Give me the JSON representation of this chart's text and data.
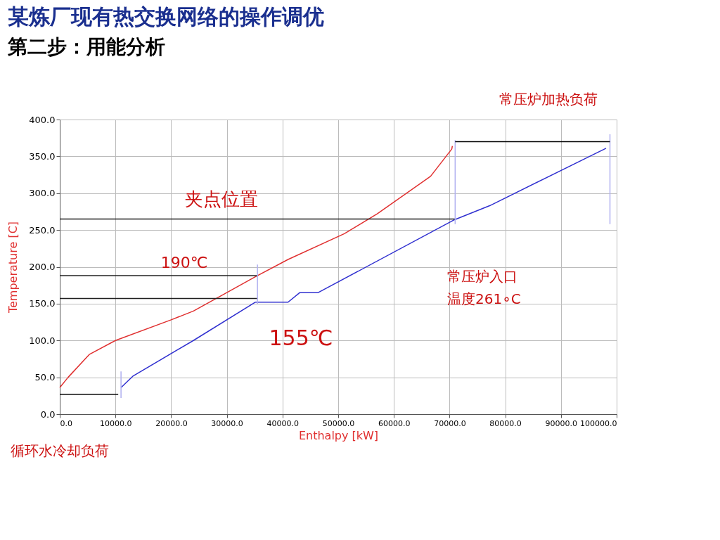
{
  "chart_data": {
    "type": "line",
    "title": "某炼厂现有热交换网络的操作调优",
    "subtitle": "第二步：用能分析",
    "xlabel": "Enthalpy [kW]",
    "ylabel": "Temperature [C]",
    "xlim": [
      0,
      100000
    ],
    "ylim": [
      0,
      400
    ],
    "xticks": [
      {
        "value": 0,
        "label": "0.0"
      },
      {
        "value": 10000,
        "label": "10000.0"
      },
      {
        "value": 20000,
        "label": "20000.0"
      },
      {
        "value": 30000,
        "label": "30000.0"
      },
      {
        "value": 40000,
        "label": "40000.0"
      },
      {
        "value": 50000,
        "label": "50000.0"
      },
      {
        "value": 60000,
        "label": "60000.0"
      },
      {
        "value": 70000,
        "label": "70000.0"
      },
      {
        "value": 80000,
        "label": "80000.0"
      },
      {
        "value": 90000,
        "label": "90000.0"
      },
      {
        "value": 100000,
        "label": "100000.0"
      }
    ],
    "yticks": [
      {
        "value": 0,
        "label": "0.0"
      },
      {
        "value": 50,
        "label": "50.0"
      },
      {
        "value": 100,
        "label": "100.0"
      },
      {
        "value": 150,
        "label": "150.0"
      },
      {
        "value": 200,
        "label": "200.0"
      },
      {
        "value": 250,
        "label": "250.0"
      },
      {
        "value": 300,
        "label": "300.0"
      },
      {
        "value": 350,
        "label": "350.0"
      },
      {
        "value": 400,
        "label": "400.0"
      }
    ],
    "grid": true,
    "line_style": "solid",
    "marker": "none",
    "series": [
      {
        "color": "#e03030",
        "x": [
          0,
          1500,
          5300,
          10000,
          20000,
          24000,
          30000,
          35000,
          41000,
          51100,
          57000,
          66600,
          70400,
          70500
        ],
        "values": [
          36,
          50,
          81,
          100,
          128,
          140,
          165,
          186,
          210,
          245,
          272,
          323,
          360,
          364
        ]
      },
      {
        "color": "#3030d0",
        "x": [
          11000,
          13200,
          24000,
          35100,
          41000,
          43100,
          46400,
          70900,
          77200,
          98100
        ],
        "values": [
          36,
          52,
          100,
          152,
          152,
          165,
          165,
          264,
          283,
          361
        ]
      },
      {
        "color": "#202020",
        "x": [
          0,
          71000
        ],
        "values": [
          265,
          265
        ]
      },
      {
        "color": "#202020",
        "x": [
          0,
          35500
        ],
        "values": [
          188,
          188
        ]
      },
      {
        "color": "#202020",
        "x": [
          0,
          35500
        ],
        "values": [
          157,
          157
        ]
      },
      {
        "color": "#b0b0f0",
        "x": [
          11000,
          11000
        ],
        "values": [
          22,
          58
        ]
      },
      {
        "color": "#b0b0f0",
        "x": [
          35500,
          35500
        ],
        "values": [
          150,
          203
        ]
      },
      {
        "color": "#b0b0f0",
        "x": [
          71000,
          71000
        ],
        "values": [
          258,
          372
        ]
      },
      {
        "color": "#b0b0f0",
        "x": [
          98800,
          98800
        ],
        "values": [
          258,
          380
        ]
      },
      {
        "color": "#000000",
        "x": [
          71000,
          98800
        ],
        "values": [
          370,
          370
        ]
      },
      {
        "color": "#000000",
        "x": [
          0,
          10500
        ],
        "values": [
          27,
          27
        ]
      }
    ],
    "annotations": [
      "夹点位置",
      "190℃",
      "155℃",
      "常压炉入口",
      "温度261∘C",
      "常压炉加热负荷",
      "循环水冷却负荷"
    ]
  }
}
